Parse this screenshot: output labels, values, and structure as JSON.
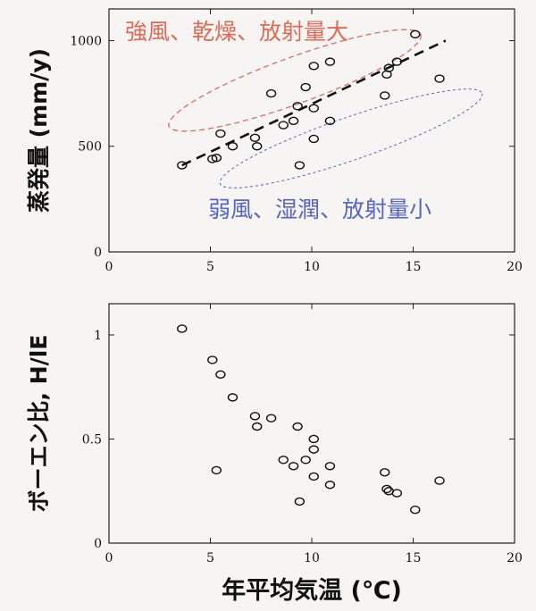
{
  "chart_data": [
    {
      "type": "scatter",
      "xlabel": "",
      "ylabel": "蒸発量 (mm/y)",
      "xlim": [
        0,
        20
      ],
      "ylim": [
        0,
        1150
      ],
      "x_ticks": [
        "0",
        "5",
        "10",
        "15",
        "20"
      ],
      "y_ticks": [
        "0",
        "500",
        "1000"
      ],
      "grid": false,
      "points": [
        [
          3.6,
          410
        ],
        [
          5.1,
          440
        ],
        [
          5.3,
          445
        ],
        [
          5.5,
          560
        ],
        [
          6.1,
          500
        ],
        [
          7.2,
          540
        ],
        [
          7.3,
          500
        ],
        [
          8.0,
          750
        ],
        [
          8.6,
          600
        ],
        [
          9.1,
          620
        ],
        [
          9.3,
          690
        ],
        [
          9.4,
          410
        ],
        [
          9.7,
          780
        ],
        [
          10.1,
          535
        ],
        [
          10.1,
          680
        ],
        [
          10.1,
          880
        ],
        [
          10.9,
          620
        ],
        [
          10.9,
          900
        ],
        [
          13.6,
          740
        ],
        [
          13.7,
          840
        ],
        [
          13.8,
          870
        ],
        [
          14.2,
          900
        ],
        [
          15.1,
          1030
        ],
        [
          16.3,
          820
        ]
      ],
      "trend_line": [
        [
          3.6,
          410
        ],
        [
          16.6,
          1000
        ]
      ],
      "annotations": [
        {
          "text": "強風、乾燥、放射量大",
          "color": "#e06a55"
        },
        {
          "text": "弱風、湿潤、放射量小",
          "color": "#5565c8"
        }
      ]
    },
    {
      "type": "scatter",
      "xlabel": "年平均気温 (℃)",
      "ylabel": "ボーエン比, H/lE",
      "xlim": [
        0,
        20
      ],
      "ylim": [
        0,
        1.15
      ],
      "x_ticks": [
        "0",
        "5",
        "10",
        "15",
        "20"
      ],
      "y_ticks": [
        "0",
        "0.5",
        "1"
      ],
      "grid": false,
      "points": [
        [
          3.6,
          1.03
        ],
        [
          5.1,
          0.88
        ],
        [
          5.3,
          0.35
        ],
        [
          5.5,
          0.81
        ],
        [
          6.1,
          0.7
        ],
        [
          7.2,
          0.61
        ],
        [
          7.3,
          0.56
        ],
        [
          8.0,
          0.6
        ],
        [
          8.6,
          0.4
        ],
        [
          9.1,
          0.37
        ],
        [
          9.3,
          0.56
        ],
        [
          9.4,
          0.2
        ],
        [
          9.7,
          0.4
        ],
        [
          10.1,
          0.32
        ],
        [
          10.1,
          0.45
        ],
        [
          10.1,
          0.5
        ],
        [
          10.9,
          0.28
        ],
        [
          10.9,
          0.37
        ],
        [
          13.6,
          0.34
        ],
        [
          13.7,
          0.26
        ],
        [
          13.8,
          0.25
        ],
        [
          14.2,
          0.24
        ],
        [
          15.1,
          0.16
        ],
        [
          16.3,
          0.3
        ]
      ]
    }
  ]
}
